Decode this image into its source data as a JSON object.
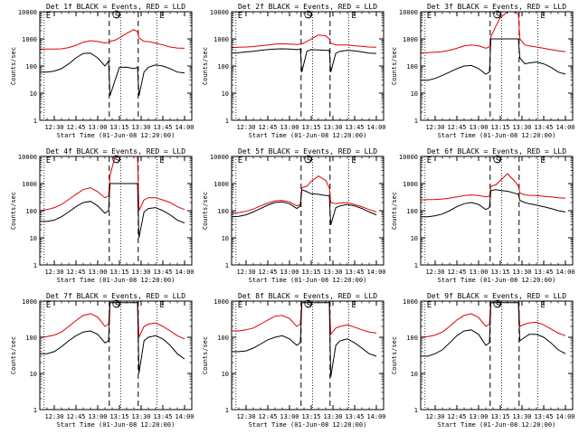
{
  "figure": {
    "shared_xlabel": "Start Time (01-Jun-08 12:20:00)",
    "ylabel": "Counts/sec",
    "x_tick_labels": [
      "12:30",
      "12:45",
      "13:00",
      "13:15",
      "13:30",
      "13:45",
      "14:00"
    ],
    "y_tick_labels": [
      "1",
      "10",
      "100",
      "1000",
      "10000"
    ],
    "event_markers": [
      "E",
      "S",
      "E"
    ],
    "colors": {
      "events": "#000000",
      "lld": "#e00000",
      "axes": "#000000",
      "background": "#ffffff"
    }
  },
  "chart_data": [
    {
      "type": "line",
      "title": "Det 1f BLACK = Events, RED = LLD",
      "xlabel": "Start Time (01-Jun-08 12:20:00)",
      "ylabel": "Counts/sec",
      "x_unit": "minutes after 12:20:00",
      "xlim": [
        0,
        105
      ],
      "ylim": [
        1,
        10000
      ],
      "yscale": "log",
      "dotted_lines_x": [
        3,
        56,
        81
      ],
      "dashed_lines_x": [
        48,
        68
      ],
      "x": [
        0,
        5,
        10,
        15,
        20,
        25,
        30,
        35,
        40,
        45,
        47.5,
        48.5,
        52,
        55,
        60,
        65,
        67.5,
        68.5,
        72,
        75,
        80,
        85,
        90,
        95,
        100
      ],
      "series": [
        {
          "name": "Events",
          "color": "#000000",
          "values": [
            60,
            60,
            65,
            80,
            120,
            200,
            290,
            300,
            200,
            100,
            150,
            8,
            30,
            90,
            90,
            80,
            90,
            8,
            60,
            90,
            110,
            100,
            80,
            60,
            55
          ]
        },
        {
          "name": "LLD",
          "color": "#e00000",
          "values": [
            420,
            420,
            420,
            430,
            480,
            580,
            750,
            860,
            800,
            700,
            750,
            800,
            900,
            1100,
            1600,
            2200,
            1800,
            1100,
            800,
            800,
            700,
            600,
            500,
            460,
            450
          ]
        }
      ]
    },
    {
      "type": "line",
      "title": "Det 2f BLACK = Events, RED = LLD",
      "xlabel": "Start Time (01-Jun-08 12:20:00)",
      "ylabel": "Counts/sec",
      "x_unit": "minutes after 12:20:00",
      "xlim": [
        0,
        105
      ],
      "ylim": [
        1,
        10000
      ],
      "yscale": "log",
      "dotted_lines_x": [
        3,
        56,
        81
      ],
      "dashed_lines_x": [
        48,
        68
      ],
      "x": [
        0,
        5,
        10,
        15,
        20,
        25,
        30,
        35,
        40,
        45,
        47.5,
        48.5,
        52,
        55,
        60,
        65,
        67.5,
        68.5,
        72,
        75,
        80,
        85,
        90,
        95,
        100
      ],
      "series": [
        {
          "name": "Events",
          "color": "#000000",
          "values": [
            300,
            310,
            330,
            350,
            380,
            400,
            420,
            430,
            420,
            400,
            420,
            60,
            350,
            400,
            390,
            380,
            380,
            60,
            300,
            350,
            380,
            360,
            330,
            300,
            290
          ]
        },
        {
          "name": "LLD",
          "color": "#e00000",
          "values": [
            480,
            490,
            500,
            520,
            560,
            600,
            640,
            660,
            640,
            620,
            640,
            650,
            800,
            1000,
            1400,
            1300,
            1000,
            700,
            600,
            600,
            600,
            560,
            530,
            500,
            490
          ]
        }
      ]
    },
    {
      "type": "line",
      "title": "Det 3f BLACK = Events, RED = LLD",
      "xlabel": "Start Time (01-Jun-08 12:20:00)",
      "ylabel": "Counts/sec",
      "x_unit": "minutes after 12:20:00",
      "xlim": [
        0,
        105
      ],
      "ylim": [
        1,
        10000
      ],
      "yscale": "log",
      "dotted_lines_x": [
        3,
        56,
        81
      ],
      "dashed_lines_x": [
        48,
        68
      ],
      "x": [
        0,
        5,
        10,
        15,
        20,
        25,
        30,
        35,
        40,
        45,
        47.5,
        48.5,
        52,
        55,
        60,
        65,
        67.5,
        68.5,
        72,
        75,
        80,
        85,
        90,
        95,
        100
      ],
      "series": [
        {
          "name": "Events",
          "color": "#000000",
          "values": [
            30,
            30,
            35,
            45,
            60,
            80,
            100,
            105,
            80,
            50,
            60,
            1000,
            1000,
            1000,
            1000,
            1000,
            1000,
            200,
            120,
            130,
            140,
            120,
            90,
            60,
            50
          ]
        },
        {
          "name": "LLD",
          "color": "#e00000",
          "values": [
            300,
            310,
            320,
            340,
            380,
            450,
            550,
            600,
            560,
            450,
            500,
            1200,
            3000,
            6000,
            10000,
            10000,
            8000,
            1000,
            600,
            550,
            500,
            450,
            400,
            360,
            340
          ]
        }
      ]
    },
    {
      "type": "line",
      "title": "Det 4f BLACK = Events, RED = LLD",
      "xlabel": "Start Time (01-Jun-08 12:20:00)",
      "ylabel": "Counts/sec",
      "x_unit": "minutes after 12:20:00",
      "xlim": [
        0,
        105
      ],
      "ylim": [
        1,
        10000
      ],
      "yscale": "log",
      "dotted_lines_x": [
        3,
        56,
        81
      ],
      "dashed_lines_x": [
        48,
        68
      ],
      "x": [
        0,
        5,
        10,
        15,
        20,
        25,
        30,
        35,
        40,
        45,
        47.5,
        48.5,
        52,
        55,
        60,
        65,
        67.5,
        68.5,
        72,
        75,
        80,
        85,
        90,
        95,
        100
      ],
      "series": [
        {
          "name": "Events",
          "color": "#000000",
          "values": [
            40,
            40,
            45,
            60,
            90,
            140,
            200,
            220,
            150,
            80,
            100,
            1000,
            1000,
            1000,
            1000,
            1000,
            1000,
            10,
            90,
            120,
            130,
            100,
            70,
            45,
            35
          ]
        },
        {
          "name": "LLD",
          "color": "#e00000",
          "values": [
            100,
            110,
            130,
            170,
            260,
            400,
            600,
            700,
            500,
            300,
            350,
            2000,
            10000,
            10000,
            10000,
            10000,
            10000,
            100,
            250,
            300,
            300,
            250,
            200,
            140,
            110
          ]
        }
      ]
    },
    {
      "type": "line",
      "title": "Det 5f BLACK = Events, RED = LLD",
      "xlabel": "Start Time (01-Jun-08 12:20:00)",
      "ylabel": "Counts/sec",
      "x_unit": "minutes after 12:20:00",
      "xlim": [
        0,
        105
      ],
      "ylim": [
        1,
        10000
      ],
      "yscale": "log",
      "dotted_lines_x": [
        3,
        56,
        81
      ],
      "dashed_lines_x": [
        48,
        68
      ],
      "x": [
        0,
        5,
        10,
        15,
        20,
        25,
        30,
        35,
        40,
        45,
        47.5,
        48.5,
        52,
        55,
        60,
        65,
        67.5,
        68.5,
        72,
        75,
        80,
        85,
        90,
        95,
        100
      ],
      "series": [
        {
          "name": "Events",
          "color": "#000000",
          "values": [
            60,
            62,
            70,
            90,
            120,
            160,
            200,
            210,
            180,
            120,
            150,
            600,
            500,
            420,
            400,
            360,
            360,
            30,
            130,
            150,
            170,
            150,
            120,
            90,
            70
          ]
        },
        {
          "name": "LLD",
          "color": "#e00000",
          "values": [
            80,
            85,
            95,
            115,
            150,
            190,
            230,
            240,
            210,
            150,
            170,
            700,
            800,
            1200,
            1900,
            1300,
            700,
            200,
            180,
            190,
            200,
            170,
            140,
            110,
            90
          ]
        }
      ]
    },
    {
      "type": "line",
      "title": "Det 6f BLACK = Events, RED = LLD",
      "xlabel": "Start Time (01-Jun-08 12:20:00)",
      "ylabel": "Counts/sec",
      "x_unit": "minutes after 12:20:00",
      "xlim": [
        0,
        105
      ],
      "ylim": [
        1,
        10000
      ],
      "yscale": "log",
      "dotted_lines_x": [
        3,
        56,
        81
      ],
      "dashed_lines_x": [
        48,
        68
      ],
      "x": [
        0,
        5,
        10,
        15,
        20,
        25,
        30,
        35,
        40,
        45,
        47.5,
        48.5,
        52,
        55,
        60,
        65,
        67.5,
        68.5,
        72,
        75,
        80,
        85,
        90,
        95,
        100
      ],
      "series": [
        {
          "name": "Events",
          "color": "#000000",
          "values": [
            60,
            60,
            65,
            75,
            100,
            140,
            180,
            200,
            170,
            110,
            130,
            550,
            600,
            560,
            520,
            440,
            400,
            240,
            200,
            180,
            160,
            140,
            120,
            100,
            90
          ]
        },
        {
          "name": "LLD",
          "color": "#e00000",
          "values": [
            250,
            255,
            260,
            270,
            290,
            320,
            360,
            380,
            360,
            320,
            340,
            800,
            900,
            1300,
            2300,
            1200,
            800,
            450,
            380,
            370,
            360,
            340,
            320,
            300,
            290
          ]
        }
      ]
    },
    {
      "type": "line",
      "title": "Det 7f BLACK = Events, RED = LLD",
      "xlabel": "Start Time (01-Jun-08 12:20:00)",
      "ylabel": "Counts/sec",
      "x_unit": "minutes after 12:20:00",
      "xlim": [
        0,
        105
      ],
      "ylim": [
        1,
        1000
      ],
      "yscale": "log",
      "dotted_lines_x": [
        3,
        56,
        81
      ],
      "dashed_lines_x": [
        48,
        68
      ],
      "x": [
        0,
        5,
        10,
        15,
        20,
        25,
        30,
        35,
        40,
        45,
        47.5,
        48.5,
        52,
        55,
        60,
        65,
        67.5,
        68.5,
        72,
        75,
        80,
        85,
        90,
        95,
        100
      ],
      "series": [
        {
          "name": "Events",
          "color": "#000000",
          "values": [
            35,
            35,
            40,
            55,
            80,
            110,
            140,
            150,
            120,
            70,
            80,
            900,
            900,
            900,
            900,
            900,
            900,
            10,
            80,
            100,
            110,
            90,
            60,
            35,
            25
          ]
        },
        {
          "name": "LLD",
          "color": "#e00000",
          "values": [
            100,
            105,
            115,
            140,
            200,
            290,
            400,
            450,
            360,
            200,
            230,
            1000,
            1000,
            1000,
            1000,
            1000,
            1000,
            100,
            200,
            230,
            250,
            200,
            150,
            110,
            90
          ]
        }
      ]
    },
    {
      "type": "line",
      "title": "Det 8f BLACK = Events, RED = LLD",
      "xlabel": "Start Time (01-Jun-08 12:20:00)",
      "ylabel": "Counts/sec",
      "x_unit": "minutes after 12:20:00",
      "xlim": [
        0,
        105
      ],
      "ylim": [
        1,
        1000
      ],
      "yscale": "log",
      "dotted_lines_x": [
        3,
        56,
        81
      ],
      "dashed_lines_x": [
        48,
        68
      ],
      "x": [
        0,
        5,
        10,
        15,
        20,
        25,
        30,
        35,
        40,
        45,
        47.5,
        48.5,
        52,
        55,
        60,
        65,
        67.5,
        68.5,
        72,
        75,
        80,
        85,
        90,
        95,
        100
      ],
      "series": [
        {
          "name": "Events",
          "color": "#000000",
          "values": [
            40,
            40,
            42,
            50,
            65,
            85,
            100,
            110,
            90,
            60,
            70,
            900,
            900,
            900,
            900,
            900,
            900,
            8,
            60,
            80,
            90,
            70,
            50,
            35,
            30
          ]
        },
        {
          "name": "LLD",
          "color": "#e00000",
          "values": [
            150,
            150,
            160,
            180,
            230,
            300,
            380,
            400,
            330,
            200,
            230,
            1000,
            1000,
            1000,
            1000,
            1000,
            1000,
            120,
            180,
            200,
            220,
            190,
            160,
            140,
            130
          ]
        }
      ]
    },
    {
      "type": "line",
      "title": "Det 9f BLACK = Events, RED = LLD",
      "xlabel": "Start Time (01-Jun-08 12:20:00)",
      "ylabel": "Counts/sec",
      "x_unit": "minutes after 12:20:00",
      "xlim": [
        0,
        105
      ],
      "ylim": [
        1,
        1000
      ],
      "yscale": "log",
      "dotted_lines_x": [
        3,
        56,
        81
      ],
      "dashed_lines_x": [
        48,
        68
      ],
      "x": [
        0,
        5,
        10,
        15,
        20,
        25,
        30,
        35,
        40,
        45,
        47.5,
        48.5,
        52,
        55,
        60,
        65,
        67.5,
        68.5,
        72,
        75,
        80,
        85,
        90,
        95,
        100
      ],
      "series": [
        {
          "name": "Events",
          "color": "#000000",
          "values": [
            30,
            30,
            35,
            45,
            70,
            110,
            150,
            160,
            120,
            60,
            70,
            900,
            900,
            900,
            900,
            900,
            900,
            80,
            100,
            120,
            120,
            100,
            70,
            45,
            35
          ]
        },
        {
          "name": "LLD",
          "color": "#e00000",
          "values": [
            100,
            105,
            115,
            140,
            200,
            300,
            400,
            450,
            350,
            200,
            230,
            1000,
            1000,
            1000,
            1000,
            1000,
            1000,
            200,
            230,
            250,
            260,
            220,
            170,
            130,
            110
          ]
        }
      ]
    }
  ]
}
